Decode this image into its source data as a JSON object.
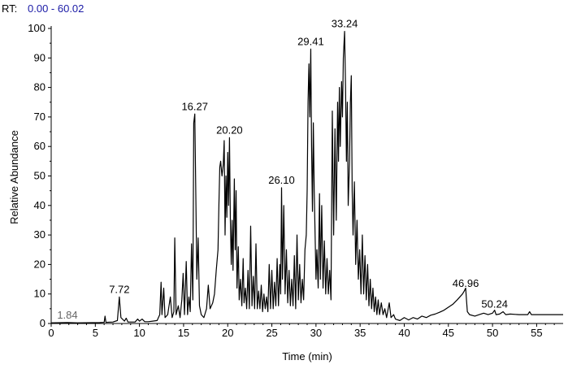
{
  "header": {
    "rt_prefix": "RT:",
    "rt_range": "0.00 - 60.02",
    "rt_color": "#1a1aa6"
  },
  "chart_data": {
    "type": "line",
    "xlabel": "Time (min)",
    "ylabel": "Relative Abundance",
    "xlim": [
      0,
      58
    ],
    "ylim": [
      0,
      100
    ],
    "x_ticks": [
      0,
      5,
      10,
      15,
      20,
      25,
      30,
      35,
      40,
      45,
      50,
      55
    ],
    "y_ticks": [
      0,
      10,
      20,
      30,
      40,
      50,
      60,
      70,
      80,
      90,
      100
    ],
    "grid": false,
    "line_color": "#000000",
    "peak_labels": [
      {
        "label": "1.84",
        "x": 1.84,
        "y": 0.3
      },
      {
        "label": "7.72",
        "x": 7.72,
        "y": 9
      },
      {
        "label": "16.27",
        "x": 16.27,
        "y": 71
      },
      {
        "label": "20.20",
        "x": 20.2,
        "y": 63
      },
      {
        "label": "26.10",
        "x": 26.1,
        "y": 46
      },
      {
        "label": "29.41",
        "x": 29.41,
        "y": 93
      },
      {
        "label": "33.24",
        "x": 33.24,
        "y": 99
      },
      {
        "label": "46.96",
        "x": 46.96,
        "y": 11
      },
      {
        "label": "50.24",
        "x": 50.24,
        "y": 4
      }
    ],
    "series": [
      {
        "values": [
          [
            0,
            0.2
          ],
          [
            1.84,
            0.3
          ],
          [
            3,
            0.2
          ],
          [
            5.5,
            0.3
          ],
          [
            6,
            0.4
          ],
          [
            6.1,
            2.5
          ],
          [
            6.2,
            0.4
          ],
          [
            7.0,
            0.5
          ],
          [
            7.5,
            1
          ],
          [
            7.72,
            9
          ],
          [
            7.9,
            2
          ],
          [
            8.3,
            0.8
          ],
          [
            8.5,
            1.8
          ],
          [
            8.7,
            0.5
          ],
          [
            9.5,
            0.5
          ],
          [
            9.8,
            1.5
          ],
          [
            10.0,
            0.8
          ],
          [
            10.3,
            1.5
          ],
          [
            10.6,
            0.6
          ],
          [
            11,
            0.6
          ],
          [
            11.5,
            0.8
          ],
          [
            12.0,
            1
          ],
          [
            12.3,
            3
          ],
          [
            12.45,
            14
          ],
          [
            12.55,
            3
          ],
          [
            12.75,
            12
          ],
          [
            12.9,
            2
          ],
          [
            13.2,
            3
          ],
          [
            13.5,
            9
          ],
          [
            13.7,
            2
          ],
          [
            13.9,
            4
          ],
          [
            14.0,
            29
          ],
          [
            14.15,
            3
          ],
          [
            14.4,
            6
          ],
          [
            14.6,
            2
          ],
          [
            14.8,
            8
          ],
          [
            14.95,
            17
          ],
          [
            15.1,
            3
          ],
          [
            15.3,
            21
          ],
          [
            15.45,
            3
          ],
          [
            15.6,
            9
          ],
          [
            15.75,
            4
          ],
          [
            15.9,
            27
          ],
          [
            16.05,
            8
          ],
          [
            16.15,
            68
          ],
          [
            16.27,
            71
          ],
          [
            16.4,
            40
          ],
          [
            16.5,
            15
          ],
          [
            16.65,
            29
          ],
          [
            16.8,
            6
          ],
          [
            17.0,
            3
          ],
          [
            17.3,
            2
          ],
          [
            17.6,
            5
          ],
          [
            17.8,
            13
          ],
          [
            18.0,
            5
          ],
          [
            18.3,
            7
          ],
          [
            18.5,
            10
          ],
          [
            18.7,
            18
          ],
          [
            18.9,
            25
          ],
          [
            19.0,
            40
          ],
          [
            19.1,
            53
          ],
          [
            19.2,
            55
          ],
          [
            19.35,
            50
          ],
          [
            19.5,
            54
          ],
          [
            19.6,
            62
          ],
          [
            19.7,
            30
          ],
          [
            19.8,
            50
          ],
          [
            19.9,
            36
          ],
          [
            20.0,
            58
          ],
          [
            20.1,
            40
          ],
          [
            20.2,
            63
          ],
          [
            20.3,
            35
          ],
          [
            20.4,
            20
          ],
          [
            20.5,
            35
          ],
          [
            20.6,
            18
          ],
          [
            20.75,
            49
          ],
          [
            20.85,
            25
          ],
          [
            20.95,
            45
          ],
          [
            21.05,
            12
          ],
          [
            21.2,
            26
          ],
          [
            21.3,
            8
          ],
          [
            21.45,
            15
          ],
          [
            21.6,
            6
          ],
          [
            21.75,
            22
          ],
          [
            21.85,
            7
          ],
          [
            22.0,
            12
          ],
          [
            22.15,
            5
          ],
          [
            22.3,
            18
          ],
          [
            22.45,
            5
          ],
          [
            22.6,
            33
          ],
          [
            22.75,
            6
          ],
          [
            22.9,
            16
          ],
          [
            23.05,
            5
          ],
          [
            23.2,
            27
          ],
          [
            23.35,
            5
          ],
          [
            23.5,
            11
          ],
          [
            23.65,
            5
          ],
          [
            23.8,
            13
          ],
          [
            23.95,
            4
          ],
          [
            24.1,
            10
          ],
          [
            24.25,
            5
          ],
          [
            24.4,
            9
          ],
          [
            24.55,
            4
          ],
          [
            24.7,
            20
          ],
          [
            24.85,
            5
          ],
          [
            25.0,
            18
          ],
          [
            25.15,
            5
          ],
          [
            25.3,
            14
          ],
          [
            25.45,
            6
          ],
          [
            25.6,
            22
          ],
          [
            25.75,
            6
          ],
          [
            25.9,
            20
          ],
          [
            26.0,
            10
          ],
          [
            26.1,
            46
          ],
          [
            26.2,
            15
          ],
          [
            26.35,
            40
          ],
          [
            26.5,
            10
          ],
          [
            26.65,
            25
          ],
          [
            26.8,
            7
          ],
          [
            26.95,
            18
          ],
          [
            27.1,
            6
          ],
          [
            27.25,
            15
          ],
          [
            27.4,
            6
          ],
          [
            27.55,
            23
          ],
          [
            27.7,
            5
          ],
          [
            27.85,
            30
          ],
          [
            28.0,
            8
          ],
          [
            28.15,
            20
          ],
          [
            28.3,
            7
          ],
          [
            28.45,
            15
          ],
          [
            28.6,
            8
          ],
          [
            28.75,
            25
          ],
          [
            28.9,
            30
          ],
          [
            29.0,
            45
          ],
          [
            29.1,
            75
          ],
          [
            29.2,
            88
          ],
          [
            29.3,
            70
          ],
          [
            29.41,
            93
          ],
          [
            29.5,
            60
          ],
          [
            29.6,
            38
          ],
          [
            29.7,
            68
          ],
          [
            29.8,
            45
          ],
          [
            29.9,
            30
          ],
          [
            30.0,
            15
          ],
          [
            30.1,
            25
          ],
          [
            30.25,
            12
          ],
          [
            30.4,
            44
          ],
          [
            30.5,
            15
          ],
          [
            30.65,
            40
          ],
          [
            30.8,
            12
          ],
          [
            30.95,
            28
          ],
          [
            31.1,
            10
          ],
          [
            31.25,
            22
          ],
          [
            31.4,
            10
          ],
          [
            31.55,
            18
          ],
          [
            31.7,
            8
          ],
          [
            31.85,
            72
          ],
          [
            32.0,
            30
          ],
          [
            32.15,
            66
          ],
          [
            32.3,
            35
          ],
          [
            32.45,
            75
          ],
          [
            32.55,
            55
          ],
          [
            32.65,
            80
          ],
          [
            32.75,
            60
          ],
          [
            32.9,
            82
          ],
          [
            33.0,
            70
          ],
          [
            33.1,
            90
          ],
          [
            33.24,
            99
          ],
          [
            33.35,
            80
          ],
          [
            33.45,
            55
          ],
          [
            33.55,
            75
          ],
          [
            33.65,
            40
          ],
          [
            33.8,
            55
          ],
          [
            33.9,
            75
          ],
          [
            34.0,
            84
          ],
          [
            34.1,
            45
          ],
          [
            34.2,
            30
          ],
          [
            34.35,
            48
          ],
          [
            34.5,
            20
          ],
          [
            34.65,
            35
          ],
          [
            34.8,
            15
          ],
          [
            34.95,
            25
          ],
          [
            35.1,
            10
          ],
          [
            35.25,
            30
          ],
          [
            35.4,
            10
          ],
          [
            35.55,
            23
          ],
          [
            35.7,
            8
          ],
          [
            35.85,
            20
          ],
          [
            36.0,
            6
          ],
          [
            36.15,
            15
          ],
          [
            36.3,
            5
          ],
          [
            36.45,
            12
          ],
          [
            36.6,
            4
          ],
          [
            36.75,
            9
          ],
          [
            36.9,
            3
          ],
          [
            37.05,
            8
          ],
          [
            37.2,
            3
          ],
          [
            37.4,
            7
          ],
          [
            37.6,
            3
          ],
          [
            37.8,
            5
          ],
          [
            38.0,
            2
          ],
          [
            38.3,
            7
          ],
          [
            38.5,
            2
          ],
          [
            38.8,
            3
          ],
          [
            39.0,
            1.5
          ],
          [
            39.5,
            1
          ],
          [
            40.0,
            2
          ],
          [
            40.5,
            1.2
          ],
          [
            41.0,
            2
          ],
          [
            41.5,
            1.5
          ],
          [
            42.0,
            2.5
          ],
          [
            42.5,
            2
          ],
          [
            43.0,
            2.8
          ],
          [
            43.5,
            3.2
          ],
          [
            44.0,
            3.8
          ],
          [
            44.5,
            4.5
          ],
          [
            45.0,
            5.5
          ],
          [
            45.5,
            6.5
          ],
          [
            46.0,
            8
          ],
          [
            46.3,
            9
          ],
          [
            46.6,
            10
          ],
          [
            46.8,
            11
          ],
          [
            46.96,
            12
          ],
          [
            47.05,
            8
          ],
          [
            47.15,
            4
          ],
          [
            47.4,
            3
          ],
          [
            48.0,
            2.5
          ],
          [
            48.5,
            3
          ],
          [
            49.0,
            3.5
          ],
          [
            49.5,
            3
          ],
          [
            50.0,
            3.5
          ],
          [
            50.24,
            4.5
          ],
          [
            50.4,
            3
          ],
          [
            50.8,
            3.2
          ],
          [
            51.2,
            4
          ],
          [
            51.5,
            3
          ],
          [
            52.0,
            3.2
          ],
          [
            53.0,
            3
          ],
          [
            54.0,
            3
          ],
          [
            54.2,
            4
          ],
          [
            54.4,
            3
          ],
          [
            55.0,
            3
          ],
          [
            56.0,
            3
          ],
          [
            57.0,
            3
          ],
          [
            58.0,
            3
          ]
        ]
      }
    ]
  }
}
